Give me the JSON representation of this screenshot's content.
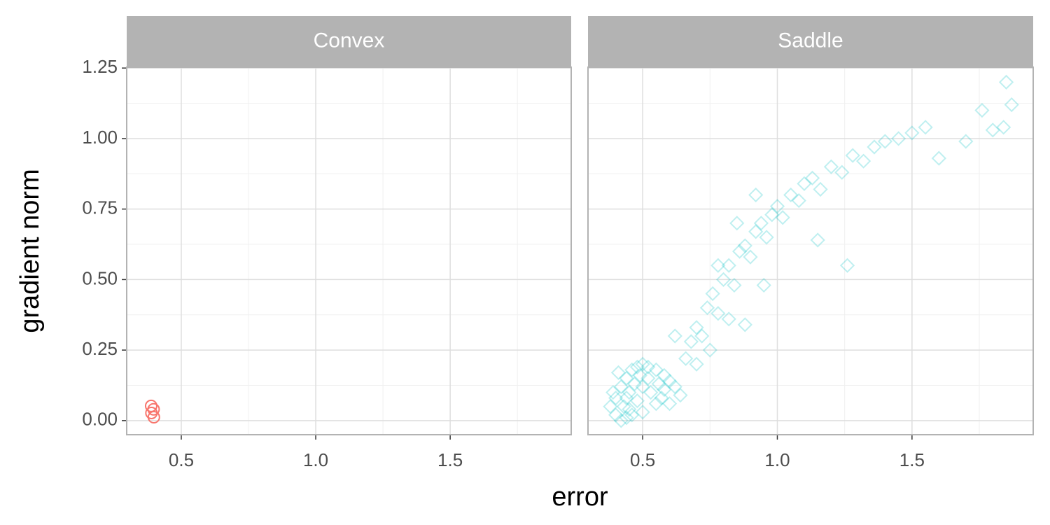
{
  "chart_data": [
    {
      "type": "scatter",
      "title": "Convex",
      "xlabel": "error",
      "ylabel": "gradient norm",
      "xlim": [
        0.297,
        1.95
      ],
      "ylim": [
        -0.05,
        1.253
      ],
      "xticks": [
        {
          "value": 0.5,
          "label": "0.5"
        },
        {
          "value": 1.0,
          "label": "1.0"
        },
        {
          "value": 1.5,
          "label": "1.5"
        }
      ],
      "yticks": [
        {
          "value": 0,
          "label": "0.00"
        },
        {
          "value": 0.25,
          "label": "0.25"
        },
        {
          "value": 0.5,
          "label": "0.50"
        },
        {
          "value": 0.75,
          "label": "0.75"
        },
        {
          "value": 1.0,
          "label": "1.00"
        },
        {
          "value": 1.25,
          "label": "1.25"
        }
      ],
      "xminor": [
        0.75,
        1.25,
        1.75
      ],
      "yminor": [
        0.125,
        0.375,
        0.625,
        0.875,
        1.125
      ],
      "grid": true,
      "series": [
        {
          "color": "#f8766d",
          "marker": "circle",
          "opacity": 1,
          "x": [
            0.388,
            0.397,
            0.389,
            0.398
          ],
          "y": [
            0.052,
            0.04,
            0.027,
            0.012
          ]
        }
      ]
    },
    {
      "type": "scatter",
      "title": "Saddle",
      "xlim": [
        0.297,
        1.95
      ],
      "ylim": [
        -0.05,
        1.253
      ],
      "xticks": [
        {
          "value": 0.5,
          "label": "0.5"
        },
        {
          "value": 1.0,
          "label": "1.0"
        },
        {
          "value": 1.5,
          "label": "1.5"
        }
      ],
      "yticks": [
        0,
        0.25,
        0.5,
        0.75,
        1.0,
        1.25
      ],
      "xminor": [
        0.75,
        1.25,
        1.75
      ],
      "yminor": [
        0.125,
        0.375,
        0.625,
        0.875,
        1.125
      ],
      "grid": true,
      "series": [
        {
          "color": "#00bfc4",
          "marker": "diamond",
          "opacity": 0.25,
          "x": [
            0.4,
            0.42,
            0.44,
            0.46,
            0.38,
            0.4,
            0.42,
            0.44,
            0.46,
            0.48,
            0.5,
            0.52,
            0.55,
            0.58,
            0.6,
            0.62,
            0.55,
            0.5,
            0.48,
            0.45,
            0.43,
            0.5,
            0.53,
            0.57,
            0.6,
            0.64,
            0.39,
            0.41,
            0.47,
            0.52,
            0.56,
            0.45,
            0.49,
            0.44,
            0.58,
            0.66,
            0.68,
            0.7,
            0.72,
            0.74,
            0.76,
            0.78,
            0.8,
            0.82,
            0.84,
            0.86,
            0.88,
            0.9,
            0.92,
            0.94,
            0.96,
            0.98,
            1.0,
            1.02,
            1.05,
            1.08,
            1.1,
            1.13,
            1.16,
            1.2,
            1.24,
            1.28,
            1.32,
            1.36,
            1.4,
            1.45,
            1.5,
            1.55,
            1.6,
            1.7,
            1.76,
            1.8,
            1.84,
            1.87,
            1.85,
            1.26,
            0.82,
            0.88,
            0.95,
            0.7,
            0.75,
            1.15,
            0.62,
            0.78,
            0.85,
            0.92
          ],
          "y": [
            0.02,
            0.0,
            0.01,
            0.02,
            0.05,
            0.08,
            0.12,
            0.15,
            0.18,
            0.19,
            0.2,
            0.19,
            0.18,
            0.16,
            0.14,
            0.12,
            0.06,
            0.03,
            0.07,
            0.1,
            0.05,
            0.12,
            0.1,
            0.08,
            0.06,
            0.09,
            0.1,
            0.17,
            0.13,
            0.15,
            0.13,
            0.04,
            0.16,
            0.08,
            0.11,
            0.22,
            0.28,
            0.33,
            0.3,
            0.4,
            0.45,
            0.38,
            0.5,
            0.55,
            0.48,
            0.6,
            0.62,
            0.58,
            0.67,
            0.7,
            0.65,
            0.73,
            0.76,
            0.72,
            0.8,
            0.78,
            0.84,
            0.86,
            0.82,
            0.9,
            0.88,
            0.94,
            0.92,
            0.97,
            0.99,
            1.0,
            1.02,
            1.04,
            0.93,
            0.99,
            1.1,
            1.03,
            1.04,
            1.12,
            1.2,
            0.55,
            0.36,
            0.34,
            0.48,
            0.2,
            0.25,
            0.64,
            0.3,
            0.55,
            0.7,
            0.8
          ]
        }
      ]
    }
  ]
}
